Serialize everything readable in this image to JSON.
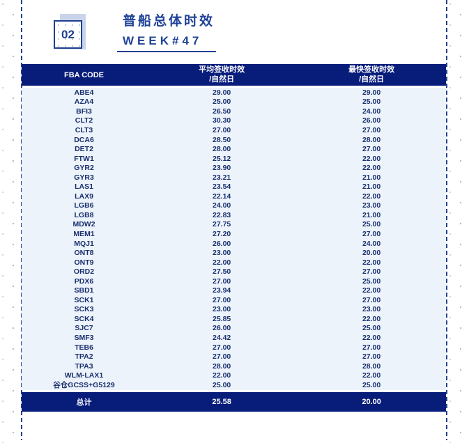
{
  "page": {
    "badge_number": "02",
    "title": "普船总体时效",
    "subtitle": "WEEK#47"
  },
  "colors": {
    "navy": "#081c7a",
    "title_blue": "#1f4297",
    "row_bg": "#ecf3fb",
    "badge_shadow": "#c9d4ea",
    "frame_dash": "#24418f"
  },
  "table": {
    "header": {
      "col1": "FBA CODE",
      "col2_line1": "平均签收时效",
      "col2_line2": "/自然日",
      "col3_line1": "最快签收时效",
      "col3_line2": "/自然日"
    },
    "rows": [
      {
        "code": "ABE4",
        "avg": "29.00",
        "fastest": "29.00"
      },
      {
        "code": "AZA4",
        "avg": "25.00",
        "fastest": "25.00"
      },
      {
        "code": "BFI3",
        "avg": "26.50",
        "fastest": "24.00"
      },
      {
        "code": "CLT2",
        "avg": "30.30",
        "fastest": "26.00"
      },
      {
        "code": "CLT3",
        "avg": "27.00",
        "fastest": "27.00"
      },
      {
        "code": "DCA6",
        "avg": "28.50",
        "fastest": "28.00"
      },
      {
        "code": "DET2",
        "avg": "28.00",
        "fastest": "27.00"
      },
      {
        "code": "FTW1",
        "avg": "25.12",
        "fastest": "22.00"
      },
      {
        "code": "GYR2",
        "avg": "23.90",
        "fastest": "22.00"
      },
      {
        "code": "GYR3",
        "avg": "23.21",
        "fastest": "21.00"
      },
      {
        "code": "LAS1",
        "avg": "23.54",
        "fastest": "21.00"
      },
      {
        "code": "LAX9",
        "avg": "22.14",
        "fastest": "22.00"
      },
      {
        "code": "LGB6",
        "avg": "24.00",
        "fastest": "23.00"
      },
      {
        "code": "LGB8",
        "avg": "22.83",
        "fastest": "21.00"
      },
      {
        "code": "MDW2",
        "avg": "27.75",
        "fastest": "25.00"
      },
      {
        "code": "MEM1",
        "avg": "27.20",
        "fastest": "27.00"
      },
      {
        "code": "MQJ1",
        "avg": "26.00",
        "fastest": "24.00"
      },
      {
        "code": "ONT8",
        "avg": "23.00",
        "fastest": "20.00"
      },
      {
        "code": "ONT9",
        "avg": "22.00",
        "fastest": "22.00"
      },
      {
        "code": "ORD2",
        "avg": "27.50",
        "fastest": "27.00"
      },
      {
        "code": "PDX6",
        "avg": "27.00",
        "fastest": "25.00"
      },
      {
        "code": "SBD1",
        "avg": "23.94",
        "fastest": "22.00"
      },
      {
        "code": "SCK1",
        "avg": "27.00",
        "fastest": "27.00"
      },
      {
        "code": "SCK3",
        "avg": "23.00",
        "fastest": "23.00"
      },
      {
        "code": "SCK4",
        "avg": "25.85",
        "fastest": "22.00"
      },
      {
        "code": "SJC7",
        "avg": "26.00",
        "fastest": "25.00"
      },
      {
        "code": "SMF3",
        "avg": "24.42",
        "fastest": "22.00"
      },
      {
        "code": "TEB6",
        "avg": "27.00",
        "fastest": "27.00"
      },
      {
        "code": "TPA2",
        "avg": "27.00",
        "fastest": "27.00"
      },
      {
        "code": "TPA3",
        "avg": "28.00",
        "fastest": "28.00"
      },
      {
        "code": "WLM-LAX1",
        "avg": "22.00",
        "fastest": "22.00"
      },
      {
        "code": "谷仓GCSS+G5129",
        "avg": "25.00",
        "fastest": "25.00"
      }
    ],
    "total": {
      "label": "总计",
      "avg": "25.58",
      "fastest": "20.00"
    }
  }
}
